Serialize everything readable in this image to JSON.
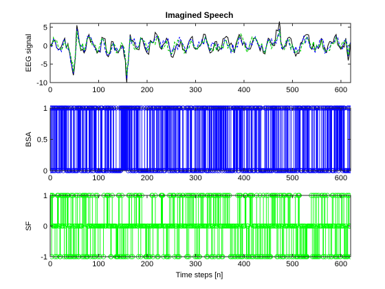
{
  "figure": {
    "title": "Imagined Speech",
    "background": "#ffffff"
  },
  "chart_data": [
    {
      "type": "line",
      "title": "Imagined Speech",
      "xlabel": "",
      "ylabel": "EEG signal",
      "xlim": [
        0,
        620
      ],
      "ylim": [
        -10,
        6
      ],
      "xticks": [
        0,
        100,
        200,
        300,
        400,
        500,
        600
      ],
      "yticks": [
        5,
        0,
        -5,
        -10
      ],
      "grid": false,
      "series": [
        {
          "color": "#000000",
          "style": "solid",
          "x": [
            0,
            10,
            20,
            30,
            40,
            45,
            48,
            52,
            55,
            60,
            70,
            80,
            90,
            100,
            110,
            120,
            130,
            140,
            150,
            155,
            158,
            161,
            165,
            170,
            180,
            190,
            200,
            210,
            220,
            230,
            240,
            250,
            260,
            270,
            280,
            290,
            300,
            310,
            320,
            330,
            340,
            350,
            360,
            370,
            380,
            390,
            400,
            410,
            420,
            430,
            440,
            450,
            460,
            470,
            473,
            476,
            480,
            490,
            500,
            510,
            520,
            530,
            540,
            550,
            560,
            570,
            580,
            590,
            600,
            610,
            615,
            620
          ],
          "values": [
            0,
            1.5,
            -1,
            2,
            -2,
            -6,
            -8,
            -3,
            5.5,
            1,
            -2,
            3,
            0,
            -1.5,
            2,
            -3,
            1,
            -2,
            0,
            -4,
            -10,
            -5,
            3,
            1.5,
            -1,
            2,
            -2,
            1,
            3,
            -1,
            2,
            -3,
            0,
            1.5,
            -2,
            2,
            -1,
            0,
            3,
            -2,
            1,
            -1,
            2,
            0,
            -2,
            3,
            1,
            -1,
            2,
            0,
            -2,
            2,
            0,
            4,
            6.5,
            1,
            -1,
            2,
            0,
            -2,
            1,
            3,
            -1,
            0,
            2,
            -2,
            1,
            3,
            -1,
            2,
            -4,
            1
          ]
        },
        {
          "color": "#0000ff",
          "style": "dashed",
          "x": [
            0,
            10,
            20,
            30,
            40,
            45,
            48,
            52,
            55,
            60,
            70,
            80,
            90,
            100,
            110,
            120,
            130,
            140,
            150,
            155,
            158,
            161,
            165,
            170,
            180,
            190,
            200,
            210,
            220,
            230,
            240,
            250,
            260,
            270,
            280,
            290,
            300,
            310,
            320,
            330,
            340,
            350,
            360,
            370,
            380,
            390,
            400,
            410,
            420,
            430,
            440,
            450,
            460,
            470,
            473,
            476,
            480,
            490,
            500,
            510,
            520,
            530,
            540,
            550,
            560,
            570,
            580,
            590,
            600,
            610,
            615,
            620
          ],
          "values": [
            0,
            1.2,
            -0.8,
            1.6,
            -1.6,
            -5.5,
            -7.5,
            -2.5,
            4.5,
            0.8,
            -1.6,
            2.5,
            0,
            -1.2,
            1.6,
            -2.5,
            0.8,
            -1.6,
            0,
            -3.5,
            -9,
            -4.5,
            2.5,
            1.2,
            -0.8,
            1.6,
            -1.6,
            0.8,
            2.5,
            -0.8,
            1.6,
            -2.5,
            0,
            1.2,
            -1.6,
            1.6,
            -0.8,
            0,
            2.5,
            -1.6,
            0.8,
            -0.8,
            1.6,
            0,
            -1.6,
            2.5,
            0.8,
            -0.8,
            1.6,
            0,
            -1.6,
            1.6,
            0,
            3,
            4.5,
            0.8,
            -0.8,
            1.6,
            0,
            -1.6,
            0.8,
            2.5,
            -0.8,
            0,
            1.6,
            -1.6,
            0.8,
            2.5,
            -0.8,
            1.6,
            -3,
            0.8
          ]
        },
        {
          "color": "#00cc00",
          "style": "dashed",
          "x": [
            0,
            10,
            20,
            30,
            40,
            45,
            48,
            52,
            55,
            60,
            70,
            80,
            90,
            100,
            110,
            120,
            130,
            140,
            150,
            155,
            158,
            161,
            165,
            170,
            180,
            190,
            200,
            210,
            220,
            230,
            240,
            250,
            260,
            270,
            280,
            290,
            300,
            310,
            320,
            330,
            340,
            350,
            360,
            370,
            380,
            390,
            400,
            410,
            420,
            430,
            440,
            450,
            460,
            470,
            473,
            476,
            480,
            490,
            500,
            510,
            520,
            530,
            540,
            550,
            560,
            570,
            580,
            590,
            600,
            610,
            615,
            620
          ],
          "values": [
            0.2,
            1.0,
            -0.6,
            1.4,
            -1.4,
            -5,
            -7,
            -2.2,
            4,
            0.6,
            -1.4,
            2.2,
            0.2,
            -1,
            1.4,
            -2.2,
            0.6,
            -1.4,
            0.2,
            -3,
            -8,
            -4,
            2.2,
            1,
            -0.6,
            1.4,
            -1.4,
            0.6,
            2.2,
            -0.6,
            1.4,
            -2.2,
            0.2,
            1,
            -1.4,
            1.4,
            -0.6,
            0.2,
            2.2,
            -1.4,
            0.6,
            -0.6,
            1.4,
            0.2,
            -1.4,
            2.2,
            0.6,
            -0.6,
            1.4,
            0.2,
            -1.4,
            1.4,
            0.2,
            2.6,
            4,
            0.6,
            -0.6,
            1.4,
            0.2,
            -1.4,
            0.6,
            2.2,
            -0.6,
            0.2,
            1.4,
            -1.4,
            0.6,
            2.2,
            -0.6,
            1.4,
            -2.6,
            0.6
          ]
        }
      ]
    },
    {
      "type": "scatter",
      "title": "",
      "xlabel": "",
      "ylabel": "BSA",
      "xlim": [
        0,
        620
      ],
      "ylim": [
        0,
        1
      ],
      "xticks": [
        0,
        100,
        200,
        300,
        400,
        500,
        600
      ],
      "yticks": [
        1,
        0.5,
        0
      ],
      "grid": false,
      "series": [
        {
          "color": "#0000ff",
          "marker": "circle",
          "stem": true,
          "x": [
            0,
            620
          ],
          "values_note": "",
          "values": [
            0,
            1
          ]
        }
      ]
    },
    {
      "type": "scatter",
      "title": "",
      "xlabel": "Time steps [n]",
      "ylabel": "SF",
      "xlim": [
        0,
        620
      ],
      "ylim": [
        -1,
        1
      ],
      "xticks": [
        0,
        100,
        200,
        300,
        400,
        500,
        600
      ],
      "yticks": [
        1,
        0,
        -1
      ],
      "grid": false,
      "series": [
        {
          "color": "#00ff00",
          "marker": "circle",
          "stem": true,
          "x": [
            0,
            620
          ],
          "values": [
            -1,
            1
          ]
        }
      ]
    }
  ]
}
